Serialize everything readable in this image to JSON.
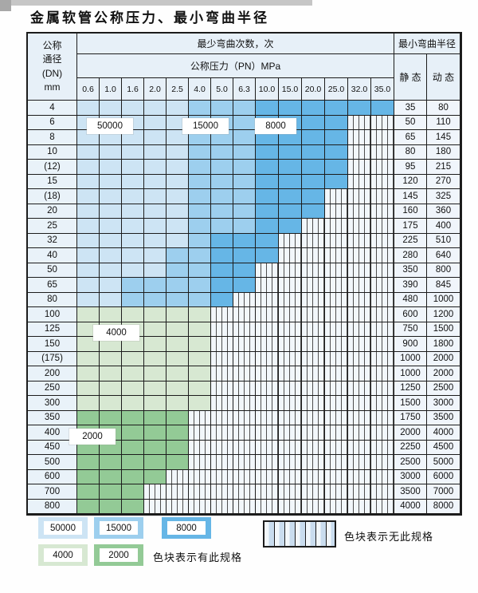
{
  "title": "金属软管公称压力、最小弯曲半径",
  "header": {
    "dn_lines": [
      "公称",
      "通径",
      "(DN)",
      "mm"
    ],
    "bend_times_label": "最少弯曲次数，次",
    "pressure_label": "公称压力（PN）MPa",
    "radius_label": "最小弯曲半径",
    "static_label": "静 态",
    "dynamic_label": "动 态"
  },
  "table": {
    "pressure_columns": [
      "0.6",
      "1.0",
      "1.6",
      "2.0",
      "2.5",
      "4.0",
      "5.0",
      "6.3",
      "10.0",
      "15.0",
      "20.0",
      "25.0",
      "32.0",
      "35.0"
    ],
    "band_codes": {
      "L": "50000",
      "M": "15000",
      "D": "8000",
      "G": "4000",
      "g": "2000",
      "X": "no-spec"
    },
    "band_colors": {
      "50000": "#cde4f4",
      "15000": "#9dcfee",
      "8000": "#66b6e6",
      "4000": "#d7e8d2",
      "2000": "#93ca96",
      "no-spec": "hatched-white"
    },
    "rows": [
      {
        "dn": "4",
        "bands": "LLLLLMMMDDDDDD",
        "static": "35",
        "dynamic": "80"
      },
      {
        "dn": "6",
        "bands": "LLLLLMMMDDDDXX",
        "static": "50",
        "dynamic": "110"
      },
      {
        "dn": "8",
        "bands": "LLLLLMMMDDDDXX",
        "static": "65",
        "dynamic": "145"
      },
      {
        "dn": "10",
        "bands": "LLLLLMMMDDDDXX",
        "static": "80",
        "dynamic": "180"
      },
      {
        "dn": "(12)",
        "bands": "LLLLLMMMDDDDXX",
        "static": "95",
        "dynamic": "215"
      },
      {
        "dn": "15",
        "bands": "LLLLLMMMDDDDXX",
        "static": "120",
        "dynamic": "270"
      },
      {
        "dn": "(18)",
        "bands": "LLLLLMMMDDDXXX",
        "static": "145",
        "dynamic": "325"
      },
      {
        "dn": "20",
        "bands": "LLLLLMMMDDDXXX",
        "static": "160",
        "dynamic": "360"
      },
      {
        "dn": "25",
        "bands": "LLLLLMMMDDXXXX",
        "static": "175",
        "dynamic": "400"
      },
      {
        "dn": "32",
        "bands": "LLLLLMDDDXXXXX",
        "static": "225",
        "dynamic": "510"
      },
      {
        "dn": "40",
        "bands": "LLLLMMDDDXXXXX",
        "static": "280",
        "dynamic": "640"
      },
      {
        "dn": "50",
        "bands": "LLLLMMDDXXXXXX",
        "static": "350",
        "dynamic": "800"
      },
      {
        "dn": "65",
        "bands": "LLMMMMDDXXXXXX",
        "static": "390",
        "dynamic": "845"
      },
      {
        "dn": "80",
        "bands": "LLMMMMDXXXXXXX",
        "static": "480",
        "dynamic": "1000"
      },
      {
        "dn": "100",
        "bands": "GGGGGGXXXXXXXX",
        "static": "600",
        "dynamic": "1200"
      },
      {
        "dn": "125",
        "bands": "GGGGGGXXXXXXXX",
        "static": "750",
        "dynamic": "1500"
      },
      {
        "dn": "150",
        "bands": "GGGGGGXXXXXXXX",
        "static": "900",
        "dynamic": "1800"
      },
      {
        "dn": "(175)",
        "bands": "GGGGGGXXXXXXXX",
        "static": "1000",
        "dynamic": "2000"
      },
      {
        "dn": "200",
        "bands": "GGGGGGXXXXXXXX",
        "static": "1000",
        "dynamic": "2000"
      },
      {
        "dn": "250",
        "bands": "GGGGGGXXXXXXXX",
        "static": "1250",
        "dynamic": "2500"
      },
      {
        "dn": "300",
        "bands": "GGGGGGXXXXXXXX",
        "static": "1500",
        "dynamic": "3000"
      },
      {
        "dn": "350",
        "bands": "gggggXXXXXXXXX",
        "static": "1750",
        "dynamic": "3500"
      },
      {
        "dn": "400",
        "bands": "gggggXXXXXXXXX",
        "static": "2000",
        "dynamic": "4000"
      },
      {
        "dn": "450",
        "bands": "gggggXXXXXXXXX",
        "static": "2250",
        "dynamic": "4500"
      },
      {
        "dn": "500",
        "bands": "gggggXXXXXXXXX",
        "static": "2500",
        "dynamic": "5000"
      },
      {
        "dn": "600",
        "bands": "ggggXXXXXXXXXX",
        "static": "3000",
        "dynamic": "6000"
      },
      {
        "dn": "700",
        "bands": "gggXXXXXXXXXXX",
        "static": "3500",
        "dynamic": "7000"
      },
      {
        "dn": "800",
        "bands": "gggXXXXXXXXXXX",
        "static": "4000",
        "dynamic": "8000"
      }
    ]
  },
  "region_labels": {
    "v50000": "50000",
    "v15000": "15000",
    "v8000": "8000",
    "v4000": "4000",
    "v2000": "2000"
  },
  "legend": {
    "items": [
      {
        "label": "50000",
        "color": "#cde4f4"
      },
      {
        "label": "15000",
        "color": "#9dcfee"
      },
      {
        "label": "8000",
        "color": "#66b6e6"
      },
      {
        "label": "4000",
        "color": "#d7e8d2"
      },
      {
        "label": "2000",
        "color": "#93ca96"
      }
    ],
    "available_note": "色块表示有此规格",
    "none_note": "色块表示无此规格"
  }
}
